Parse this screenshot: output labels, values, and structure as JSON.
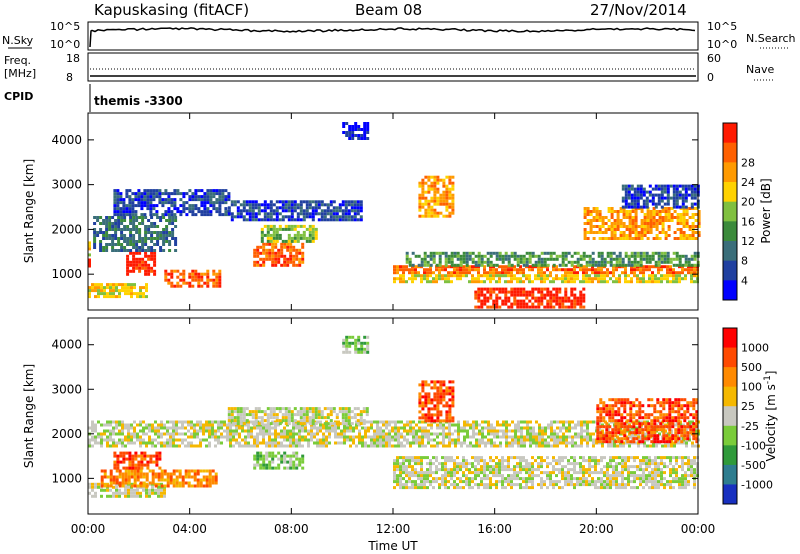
{
  "header": {
    "station": "Kapuskasing (fitACF)",
    "beam": "Beam 08",
    "date": "27/Nov/2014"
  },
  "status_panels": {
    "nsky_label": "N.Sky",
    "nsky_ticks": [
      "10^5",
      "10^0"
    ],
    "nsearch_label": "N.Search",
    "nsearch_ticks": [
      "10^5",
      "10^0"
    ],
    "freq_label": "Freq.",
    "freq_unit": "[MHz]",
    "freq_ticks": [
      "18",
      "8"
    ],
    "nave_label": "Nave",
    "nave_ticks": [
      "60",
      "0"
    ],
    "cpid_label": "CPID",
    "cpid_text": "themis -3300"
  },
  "chart_data": [
    {
      "type": "heatmap",
      "name": "Power",
      "ylabel": "Slant Range [km]",
      "ylim": [
        200,
        4600
      ],
      "yticks": [
        "1000",
        "2000",
        "3000",
        "4000"
      ],
      "colorbar": {
        "label": "Power [dB]",
        "ticks": [
          "4",
          "8",
          "12",
          "16",
          "20",
          "24",
          "28"
        ],
        "colors": [
          "#0000ff",
          "#2040a0",
          "#3a6e7a",
          "#3b8a3b",
          "#80c040",
          "#ffd200",
          "#ff9a00",
          "#ff6000",
          "#ff1a00"
        ]
      },
      "bands": [
        {
          "t0": 0.0,
          "t1": 0.06,
          "r0": 1150,
          "r1": 1350,
          "level": 8
        },
        {
          "t0": 0.0,
          "t1": 0.04,
          "r0": 1400,
          "r1": 1800,
          "level": 5
        },
        {
          "t0": 0.0,
          "t1": 2.3,
          "r0": 500,
          "r1": 800,
          "level": 5
        },
        {
          "t0": 1.5,
          "t1": 2.6,
          "r0": 1000,
          "r1": 1500,
          "level": 8
        },
        {
          "t0": 0.2,
          "t1": 3.5,
          "r0": 1500,
          "r1": 2300,
          "level": 2
        },
        {
          "t0": 1.0,
          "t1": 5.5,
          "r0": 2300,
          "r1": 2900,
          "level": 1
        },
        {
          "t0": 3.0,
          "t1": 5.2,
          "r0": 700,
          "r1": 1100,
          "level": 7
        },
        {
          "t0": 6.5,
          "t1": 8.5,
          "r0": 1200,
          "r1": 1700,
          "level": 7
        },
        {
          "t0": 6.8,
          "t1": 9.0,
          "r0": 1700,
          "r1": 2100,
          "level": 4
        },
        {
          "t0": 5.5,
          "t1": 10.8,
          "r0": 2200,
          "r1": 2650,
          "level": 1
        },
        {
          "t0": 10.0,
          "t1": 11.0,
          "r0": 4000,
          "r1": 4400,
          "level": 0
        },
        {
          "t0": 12.0,
          "t1": 24.0,
          "r0": 1000,
          "r1": 1200,
          "level": 7
        },
        {
          "t0": 12.0,
          "t1": 24.0,
          "r0": 800,
          "r1": 1000,
          "level": 5
        },
        {
          "t0": 12.5,
          "t1": 24.0,
          "r0": 1200,
          "r1": 1500,
          "level": 3
        },
        {
          "t0": 15.2,
          "t1": 19.5,
          "r0": 250,
          "r1": 700,
          "level": 8
        },
        {
          "t0": 13.0,
          "t1": 14.4,
          "r0": 2300,
          "r1": 3200,
          "level": 6
        },
        {
          "t0": 19.5,
          "t1": 24.0,
          "r0": 1800,
          "r1": 2500,
          "level": 6
        },
        {
          "t0": 21.0,
          "t1": 24.0,
          "r0": 2500,
          "r1": 3000,
          "level": 1
        }
      ]
    },
    {
      "type": "heatmap",
      "name": "Velocity",
      "ylabel": "Slant Range [km]",
      "ylim": [
        200,
        4600
      ],
      "yticks": [
        "1000",
        "2000",
        "3000",
        "4000"
      ],
      "xlabel": "Time UT",
      "xlim": [
        0,
        24
      ],
      "xticks": [
        "00:00",
        "04:00",
        "08:00",
        "12:00",
        "16:00",
        "20:00",
        "00:00"
      ],
      "colorbar": {
        "label": "Velocity [m s^-1]",
        "ticks": [
          "1000",
          "500",
          "100",
          "25",
          "-25",
          "-100",
          "-500",
          "-1000"
        ],
        "colors": [
          "#1830c0",
          "#2e7d8f",
          "#2f9a3a",
          "#7acc3a",
          "#c8c8c0",
          "#f5b800",
          "#ff8a00",
          "#ff4a00",
          "#ff0000"
        ]
      },
      "bands": [
        {
          "t0": 0.0,
          "t1": 24.0,
          "r0": 1700,
          "r1": 2300,
          "level": 4
        },
        {
          "t0": 5.5,
          "t1": 11.0,
          "r0": 2200,
          "r1": 2600,
          "level": 4
        },
        {
          "t0": 0.0,
          "t1": 3.0,
          "r0": 600,
          "r1": 900,
          "level": 4
        },
        {
          "t0": 12.0,
          "t1": 24.0,
          "r0": 800,
          "r1": 1500,
          "level": 4
        },
        {
          "t0": 0.5,
          "t1": 5.0,
          "r0": 800,
          "r1": 1200,
          "level": 6
        },
        {
          "t0": 1.0,
          "t1": 2.8,
          "r0": 1200,
          "r1": 1600,
          "level": 7
        },
        {
          "t0": 6.5,
          "t1": 8.5,
          "r0": 1200,
          "r1": 1600,
          "level": 3
        },
        {
          "t0": 13.0,
          "t1": 14.4,
          "r0": 2300,
          "r1": 3200,
          "level": 7
        },
        {
          "t0": 20.0,
          "t1": 24.0,
          "r0": 1800,
          "r1": 2800,
          "level": 7
        },
        {
          "t0": 10.0,
          "t1": 11.0,
          "r0": 3800,
          "r1": 4200,
          "level": 3
        }
      ]
    }
  ]
}
